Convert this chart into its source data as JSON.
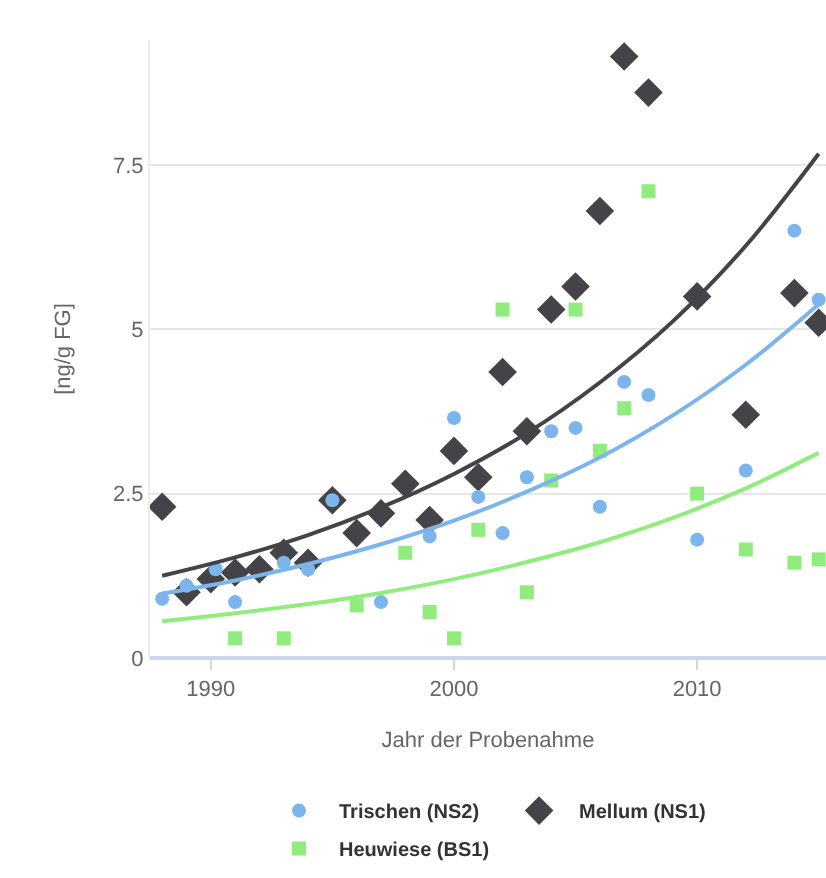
{
  "chart_data": {
    "type": "scatter",
    "xlabel": "Jahr der Probenahme",
    "ylabel": "[ng/g FG]",
    "xlim": [
      1987.5,
      2015.3
    ],
    "xticks": [
      1990,
      2000,
      2010
    ],
    "ylim": [
      0,
      9.4
    ],
    "yticks": [
      0,
      2.5,
      5,
      7.5
    ],
    "grid": "y",
    "legend": "bottom",
    "series": [
      {
        "name": "Trischen (NS2)",
        "color": "#7cb5ec",
        "marker": "circle",
        "x": [
          1988,
          1989,
          1990.2,
          1991,
          1993,
          1994,
          1995,
          1997,
          1999,
          2000,
          2001,
          2002,
          2003,
          2004,
          2005,
          2006,
          2007,
          2008,
          2010,
          2012,
          2014,
          2015
        ],
        "values": [
          0.9,
          1.1,
          1.35,
          0.85,
          1.45,
          1.35,
          2.4,
          0.85,
          1.85,
          3.65,
          2.45,
          1.9,
          2.75,
          3.45,
          3.5,
          2.3,
          4.2,
          4.0,
          1.8,
          2.85,
          6.5,
          5.45
        ]
      },
      {
        "name": "Mellum (NS1)",
        "color": "#434348",
        "marker": "diamond",
        "x": [
          1988,
          1989,
          1990,
          1991,
          1992,
          1993,
          1994,
          1995,
          1996,
          1997,
          1998,
          1999,
          2000,
          2001,
          2002,
          2003,
          2004,
          2005,
          2006,
          2007,
          2008,
          2010,
          2012,
          2014,
          2015
        ],
        "values": [
          2.3,
          1.0,
          1.2,
          1.3,
          1.35,
          1.6,
          1.45,
          2.4,
          1.9,
          2.2,
          2.65,
          2.1,
          3.15,
          2.75,
          4.35,
          3.45,
          5.3,
          5.65,
          6.8,
          9.15,
          8.6,
          5.5,
          3.7,
          5.55,
          5.1
        ]
      },
      {
        "name": "Heuwiese (BS1)",
        "color": "#90ed7d",
        "marker": "square",
        "x": [
          1991,
          1993,
          1996,
          1998,
          1999,
          2000,
          2001,
          2002,
          2003,
          2004,
          2005,
          2006,
          2007,
          2008,
          2010,
          2012,
          2014,
          2015
        ],
        "values": [
          0.3,
          0.3,
          0.8,
          1.6,
          0.7,
          0.3,
          1.95,
          5.3,
          1.0,
          2.7,
          5.3,
          3.15,
          3.8,
          7.1,
          2.5,
          1.65,
          1.45,
          1.5
        ]
      },
      {
        "type": "line",
        "color": "#434348",
        "marker": "none",
        "x": [
          1988,
          1991,
          1994,
          1997,
          2000,
          2003,
          2006,
          2009,
          2012,
          2015
        ],
        "values": [
          1.25,
          1.53,
          1.87,
          2.29,
          2.8,
          3.42,
          4.19,
          5.12,
          6.27,
          7.67
        ]
      },
      {
        "type": "line",
        "color": "#7cb5ec",
        "marker": "none",
        "x": [
          1988,
          1991,
          1994,
          1997,
          2000,
          2003,
          2006,
          2009,
          2012,
          2015
        ],
        "values": [
          0.98,
          1.18,
          1.43,
          1.73,
          2.09,
          2.53,
          3.05,
          3.69,
          4.46,
          5.38
        ]
      },
      {
        "type": "line",
        "color": "#90ed7d",
        "marker": "none",
        "x": [
          1988,
          1991,
          1994,
          1997,
          2000,
          2003,
          2006,
          2009,
          2012,
          2015
        ],
        "values": [
          0.56,
          0.68,
          0.82,
          0.99,
          1.2,
          1.46,
          1.76,
          2.13,
          2.58,
          3.12
        ]
      }
    ]
  }
}
